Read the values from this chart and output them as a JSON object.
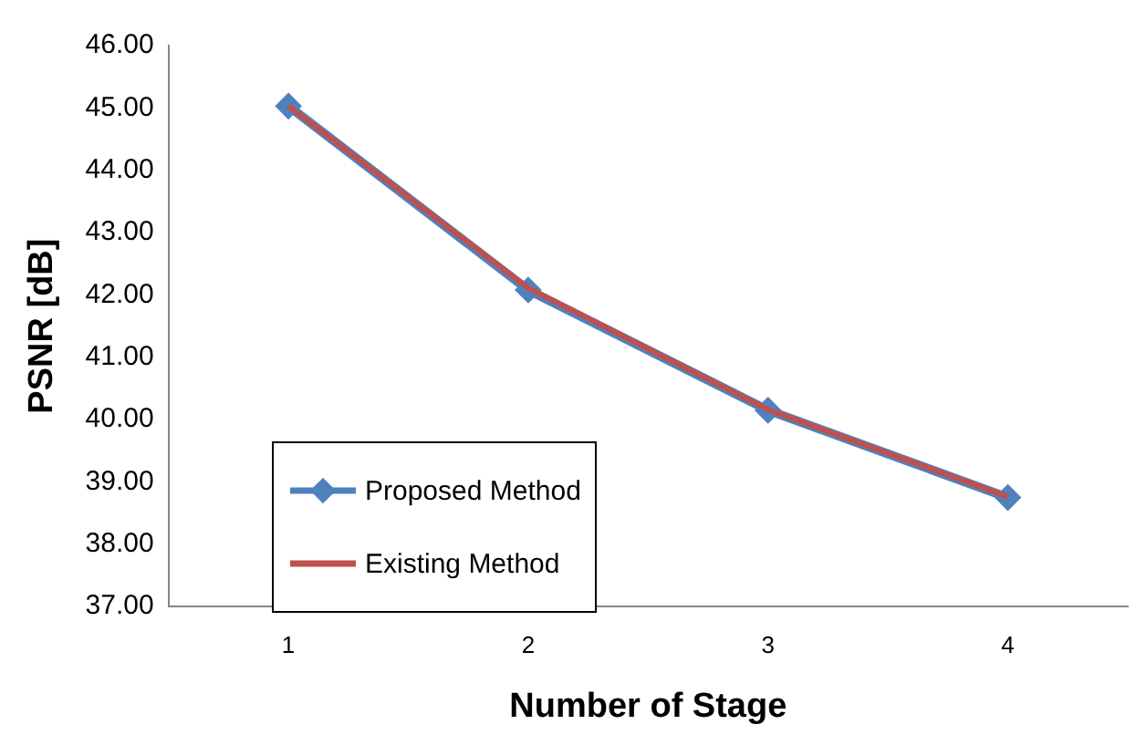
{
  "chart_data": {
    "type": "line",
    "xlabel": "Number of Stage",
    "ylabel": "PSNR [dB]",
    "categories": [
      "1",
      "2",
      "3",
      "4"
    ],
    "series": [
      {
        "name": "Proposed Method",
        "color": "#4f81bd",
        "marker": "diamond",
        "values": [
          45.03,
          42.08,
          40.15,
          38.75
        ]
      },
      {
        "name": "Existing Method",
        "color": "#c0504d",
        "marker": "none",
        "values": [
          45.03,
          42.11,
          40.16,
          38.76
        ]
      }
    ],
    "ylim": [
      37,
      46
    ],
    "yticks": [
      {
        "value": 37,
        "label": "37.00"
      },
      {
        "value": 38,
        "label": "38.00"
      },
      {
        "value": 39,
        "label": "39.00"
      },
      {
        "value": 40,
        "label": "40.00"
      },
      {
        "value": 41,
        "label": "41.00"
      },
      {
        "value": 42,
        "label": "42.00"
      },
      {
        "value": 43,
        "label": "43.00"
      },
      {
        "value": 44,
        "label": "44.00"
      },
      {
        "value": 45,
        "label": "45.00"
      },
      {
        "value": 46,
        "label": "46.00"
      }
    ],
    "grid": false,
    "legend": "bottom left"
  }
}
